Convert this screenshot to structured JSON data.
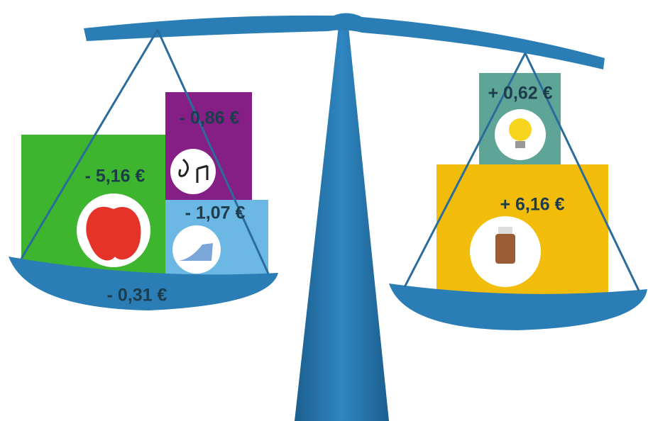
{
  "left_pan": {
    "items": [
      {
        "label": "- 5,16 €"
      },
      {
        "label": "- 0,86 €"
      },
      {
        "label": "- 1,07 €"
      }
    ],
    "pan_label": "- 0,31 €"
  },
  "right_pan": {
    "items": [
      {
        "label": "+ 0,62 €"
      },
      {
        "label": "+ 6,16 €"
      }
    ]
  }
}
